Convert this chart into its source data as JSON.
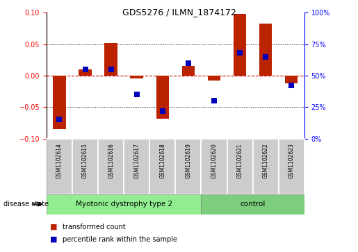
{
  "title": "GDS5276 / ILMN_1874172",
  "samples": [
    "GSM1102614",
    "GSM1102615",
    "GSM1102616",
    "GSM1102617",
    "GSM1102618",
    "GSM1102619",
    "GSM1102620",
    "GSM1102621",
    "GSM1102622",
    "GSM1102623"
  ],
  "red_values": [
    -0.085,
    0.01,
    0.052,
    -0.005,
    -0.068,
    0.015,
    -0.008,
    0.098,
    0.083,
    -0.012
  ],
  "blue_values_pct": [
    15,
    55,
    55,
    35,
    22,
    60,
    30,
    68,
    65,
    42
  ],
  "ylim_left": [
    -0.1,
    0.1
  ],
  "ylim_right": [
    0,
    100
  ],
  "left_yticks": [
    -0.1,
    -0.05,
    0.0,
    0.05,
    0.1
  ],
  "right_yticks": [
    0,
    25,
    50,
    75,
    100
  ],
  "right_yticklabels": [
    "0%",
    "25%",
    "50%",
    "75%",
    "100%"
  ],
  "disease_groups": [
    {
      "label": "Myotonic dystrophy type 2",
      "n_samples": 6,
      "color": "#90EE90"
    },
    {
      "label": "control",
      "n_samples": 4,
      "color": "#7CCD7C"
    }
  ],
  "disease_state_label": "disease state",
  "red_color": "#BB2200",
  "blue_color": "#0000BB",
  "bar_width": 0.5,
  "marker_size": 6,
  "zero_line_color": "#CC0000",
  "bg_color": "#FFFFFF",
  "sample_label_bg": "#CCCCCC",
  "title_fontsize": 9,
  "tick_fontsize": 7,
  "legend_fontsize": 7,
  "disease_fontsize": 7.5
}
